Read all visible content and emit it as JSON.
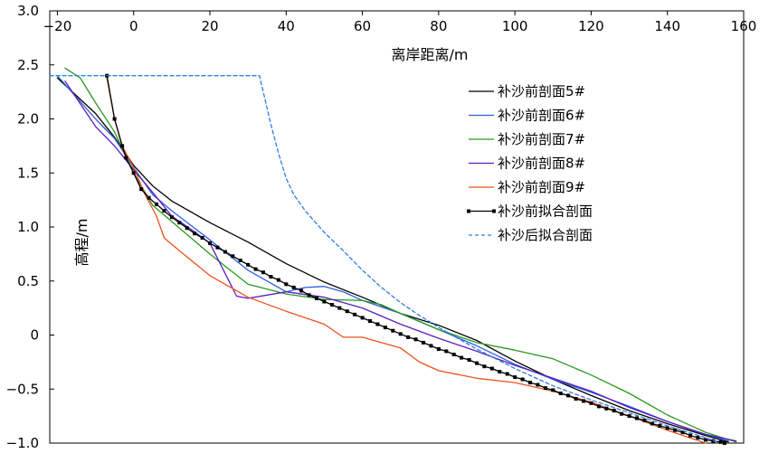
{
  "chart_data": {
    "type": "line",
    "xlabel": "离岸距离/m",
    "ylabel": "高程/m",
    "xlim": [
      -22,
      160
    ],
    "ylim": [
      -1.0,
      3.0
    ],
    "x_ticks": [
      -20,
      0,
      20,
      40,
      60,
      80,
      100,
      120,
      140,
      160
    ],
    "x_tick_labels": [
      "−20",
      "0",
      "20",
      "40",
      "60",
      "80",
      "100",
      "120",
      "140",
      "160"
    ],
    "y_ticks": [
      3.0,
      2.5,
      2.0,
      1.5,
      1.0,
      0.5,
      0,
      -0.5,
      -1.0
    ],
    "y_tick_labels": [
      "3.0",
      "2.5",
      "2.0",
      "1.5",
      "1.0",
      "0.5",
      "0",
      "−0.5",
      "−1.0"
    ],
    "x_axis_position": "top",
    "grid": false,
    "legend_position": "right",
    "series": [
      {
        "name": "补沙前剖面5#",
        "color": "#000000",
        "style": "solid",
        "points": [
          [
            -20,
            2.38
          ],
          [
            -10,
            2.05
          ],
          [
            -5,
            1.83
          ],
          [
            0,
            1.57
          ],
          [
            5,
            1.38
          ],
          [
            10,
            1.24
          ],
          [
            20,
            1.04
          ],
          [
            30,
            0.86
          ],
          [
            40,
            0.66
          ],
          [
            50,
            0.49
          ],
          [
            60,
            0.35
          ],
          [
            70,
            0.2
          ],
          [
            80,
            0.09
          ],
          [
            90,
            -0.05
          ],
          [
            100,
            -0.24
          ],
          [
            110,
            -0.41
          ],
          [
            120,
            -0.56
          ],
          [
            130,
            -0.7
          ],
          [
            140,
            -0.82
          ],
          [
            150,
            -0.93
          ],
          [
            156,
            -0.99
          ]
        ]
      },
      {
        "name": "补沙前剖面6#",
        "color": "#2e5fe0",
        "style": "solid",
        "points": [
          [
            -20,
            2.4
          ],
          [
            -10,
            2.0
          ],
          [
            -5,
            1.82
          ],
          [
            0,
            1.55
          ],
          [
            5,
            1.3
          ],
          [
            10,
            1.15
          ],
          [
            20,
            0.88
          ],
          [
            30,
            0.6
          ],
          [
            40,
            0.4
          ],
          [
            45,
            0.44
          ],
          [
            50,
            0.45
          ],
          [
            55,
            0.4
          ],
          [
            60,
            0.32
          ],
          [
            70,
            0.2
          ],
          [
            80,
            0.05
          ],
          [
            90,
            -0.1
          ],
          [
            100,
            -0.27
          ],
          [
            110,
            -0.41
          ],
          [
            120,
            -0.53
          ],
          [
            130,
            -0.66
          ],
          [
            140,
            -0.8
          ],
          [
            150,
            -0.92
          ],
          [
            156,
            -0.98
          ]
        ]
      },
      {
        "name": "补沙前剖面7#",
        "color": "#2a9a1e",
        "style": "solid",
        "points": [
          [
            -18,
            2.47
          ],
          [
            -14,
            2.38
          ],
          [
            -10,
            2.15
          ],
          [
            -5,
            1.88
          ],
          [
            0,
            1.5
          ],
          [
            5,
            1.2
          ],
          [
            10,
            1.05
          ],
          [
            20,
            0.75
          ],
          [
            30,
            0.47
          ],
          [
            40,
            0.38
          ],
          [
            50,
            0.33
          ],
          [
            60,
            0.32
          ],
          [
            65,
            0.28
          ],
          [
            70,
            0.2
          ],
          [
            80,
            0.05
          ],
          [
            90,
            -0.07
          ],
          [
            100,
            -0.14
          ],
          [
            110,
            -0.22
          ],
          [
            120,
            -0.37
          ],
          [
            130,
            -0.54
          ],
          [
            140,
            -0.74
          ],
          [
            150,
            -0.9
          ],
          [
            158,
            -0.99
          ]
        ]
      },
      {
        "name": "补沙前剖面8#",
        "color": "#5a1dbf",
        "style": "solid",
        "points": [
          [
            -18,
            2.35
          ],
          [
            -10,
            1.93
          ],
          [
            -5,
            1.75
          ],
          [
            0,
            1.53
          ],
          [
            5,
            1.32
          ],
          [
            10,
            1.1
          ],
          [
            15,
            0.98
          ],
          [
            20,
            0.85
          ],
          [
            25,
            0.5
          ],
          [
            27,
            0.36
          ],
          [
            30,
            0.34
          ],
          [
            35,
            0.37
          ],
          [
            40,
            0.4
          ],
          [
            50,
            0.35
          ],
          [
            60,
            0.25
          ],
          [
            70,
            0.1
          ],
          [
            80,
            -0.03
          ],
          [
            90,
            -0.15
          ],
          [
            100,
            -0.28
          ],
          [
            110,
            -0.4
          ],
          [
            120,
            -0.52
          ],
          [
            130,
            -0.67
          ],
          [
            140,
            -0.8
          ],
          [
            150,
            -0.92
          ],
          [
            158,
            -0.98
          ]
        ]
      },
      {
        "name": "补沙前剖面9#",
        "color": "#e8521e",
        "style": "solid",
        "points": [
          [
            -7,
            2.38
          ],
          [
            -5,
            2.0
          ],
          [
            -3,
            1.75
          ],
          [
            0,
            1.55
          ],
          [
            3,
            1.3
          ],
          [
            6,
            1.1
          ],
          [
            8,
            0.9
          ],
          [
            12,
            0.78
          ],
          [
            20,
            0.55
          ],
          [
            30,
            0.35
          ],
          [
            40,
            0.22
          ],
          [
            50,
            0.1
          ],
          [
            55,
            -0.02
          ],
          [
            60,
            -0.02
          ],
          [
            70,
            -0.12
          ],
          [
            75,
            -0.25
          ],
          [
            80,
            -0.33
          ],
          [
            90,
            -0.4
          ],
          [
            100,
            -0.44
          ],
          [
            110,
            -0.52
          ],
          [
            120,
            -0.62
          ],
          [
            130,
            -0.75
          ],
          [
            140,
            -0.88
          ],
          [
            150,
            -1.0
          ]
        ]
      },
      {
        "name": "补沙前拟合剖面",
        "color": "#000000",
        "style": "solid-markers",
        "points": [
          [
            -7,
            2.4
          ],
          [
            -5,
            2.0
          ],
          [
            -3,
            1.75
          ],
          [
            -2,
            1.64
          ],
          [
            0,
            1.5
          ],
          [
            2,
            1.35
          ],
          [
            4,
            1.27
          ],
          [
            6,
            1.21
          ],
          [
            8,
            1.15
          ],
          [
            10,
            1.09
          ],
          [
            12,
            1.04
          ],
          [
            14,
            0.99
          ],
          [
            16,
            0.94
          ],
          [
            18,
            0.9
          ],
          [
            20,
            0.85
          ],
          [
            22,
            0.81
          ],
          [
            24,
            0.77
          ],
          [
            26,
            0.73
          ],
          [
            28,
            0.69
          ],
          [
            30,
            0.65
          ],
          [
            32,
            0.61
          ],
          [
            34,
            0.58
          ],
          [
            36,
            0.54
          ],
          [
            38,
            0.51
          ],
          [
            40,
            0.47
          ],
          [
            42,
            0.44
          ],
          [
            44,
            0.41
          ],
          [
            46,
            0.37
          ],
          [
            48,
            0.34
          ],
          [
            50,
            0.31
          ],
          [
            52,
            0.28
          ],
          [
            54,
            0.25
          ],
          [
            56,
            0.22
          ],
          [
            58,
            0.19
          ],
          [
            60,
            0.16
          ],
          [
            62,
            0.13
          ],
          [
            64,
            0.1
          ],
          [
            66,
            0.07
          ],
          [
            68,
            0.04
          ],
          [
            70,
            0.01
          ],
          [
            72,
            -0.02
          ],
          [
            74,
            -0.04
          ],
          [
            76,
            -0.07
          ],
          [
            78,
            -0.1
          ],
          [
            80,
            -0.13
          ],
          [
            82,
            -0.15
          ],
          [
            84,
            -0.18
          ],
          [
            86,
            -0.21
          ],
          [
            88,
            -0.23
          ],
          [
            90,
            -0.26
          ],
          [
            92,
            -0.29
          ],
          [
            94,
            -0.31
          ],
          [
            96,
            -0.34
          ],
          [
            98,
            -0.36
          ],
          [
            100,
            -0.39
          ],
          [
            102,
            -0.41
          ],
          [
            104,
            -0.44
          ],
          [
            106,
            -0.46
          ],
          [
            108,
            -0.49
          ],
          [
            110,
            -0.51
          ],
          [
            112,
            -0.54
          ],
          [
            114,
            -0.56
          ],
          [
            116,
            -0.59
          ],
          [
            118,
            -0.61
          ],
          [
            120,
            -0.63
          ],
          [
            122,
            -0.66
          ],
          [
            124,
            -0.68
          ],
          [
            126,
            -0.7
          ],
          [
            128,
            -0.73
          ],
          [
            130,
            -0.75
          ],
          [
            132,
            -0.77
          ],
          [
            134,
            -0.79
          ],
          [
            136,
            -0.82
          ],
          [
            138,
            -0.84
          ],
          [
            140,
            -0.86
          ],
          [
            142,
            -0.88
          ],
          [
            144,
            -0.9
          ],
          [
            146,
            -0.93
          ],
          [
            148,
            -0.95
          ],
          [
            150,
            -0.97
          ],
          [
            152,
            -0.98
          ],
          [
            154,
            -0.99
          ],
          [
            155,
            -1.0
          ]
        ]
      },
      {
        "name": "补沙后拟合剖面",
        "color": "#2e7de0",
        "style": "dashed",
        "points": [
          [
            -22,
            2.4
          ],
          [
            33,
            2.4
          ],
          [
            34,
            2.25
          ],
          [
            36,
            1.95
          ],
          [
            38,
            1.68
          ],
          [
            40,
            1.45
          ],
          [
            42,
            1.3
          ],
          [
            45,
            1.15
          ],
          [
            50,
            0.95
          ],
          [
            55,
            0.78
          ],
          [
            60,
            0.6
          ],
          [
            65,
            0.44
          ],
          [
            70,
            0.3
          ],
          [
            75,
            0.18
          ],
          [
            80,
            0.07
          ],
          [
            85,
            -0.03
          ],
          [
            90,
            -0.13
          ],
          [
            100,
            -0.31
          ],
          [
            110,
            -0.47
          ],
          [
            120,
            -0.6
          ],
          [
            130,
            -0.72
          ],
          [
            140,
            -0.84
          ],
          [
            150,
            -0.95
          ],
          [
            153,
            -0.99
          ]
        ]
      }
    ]
  }
}
